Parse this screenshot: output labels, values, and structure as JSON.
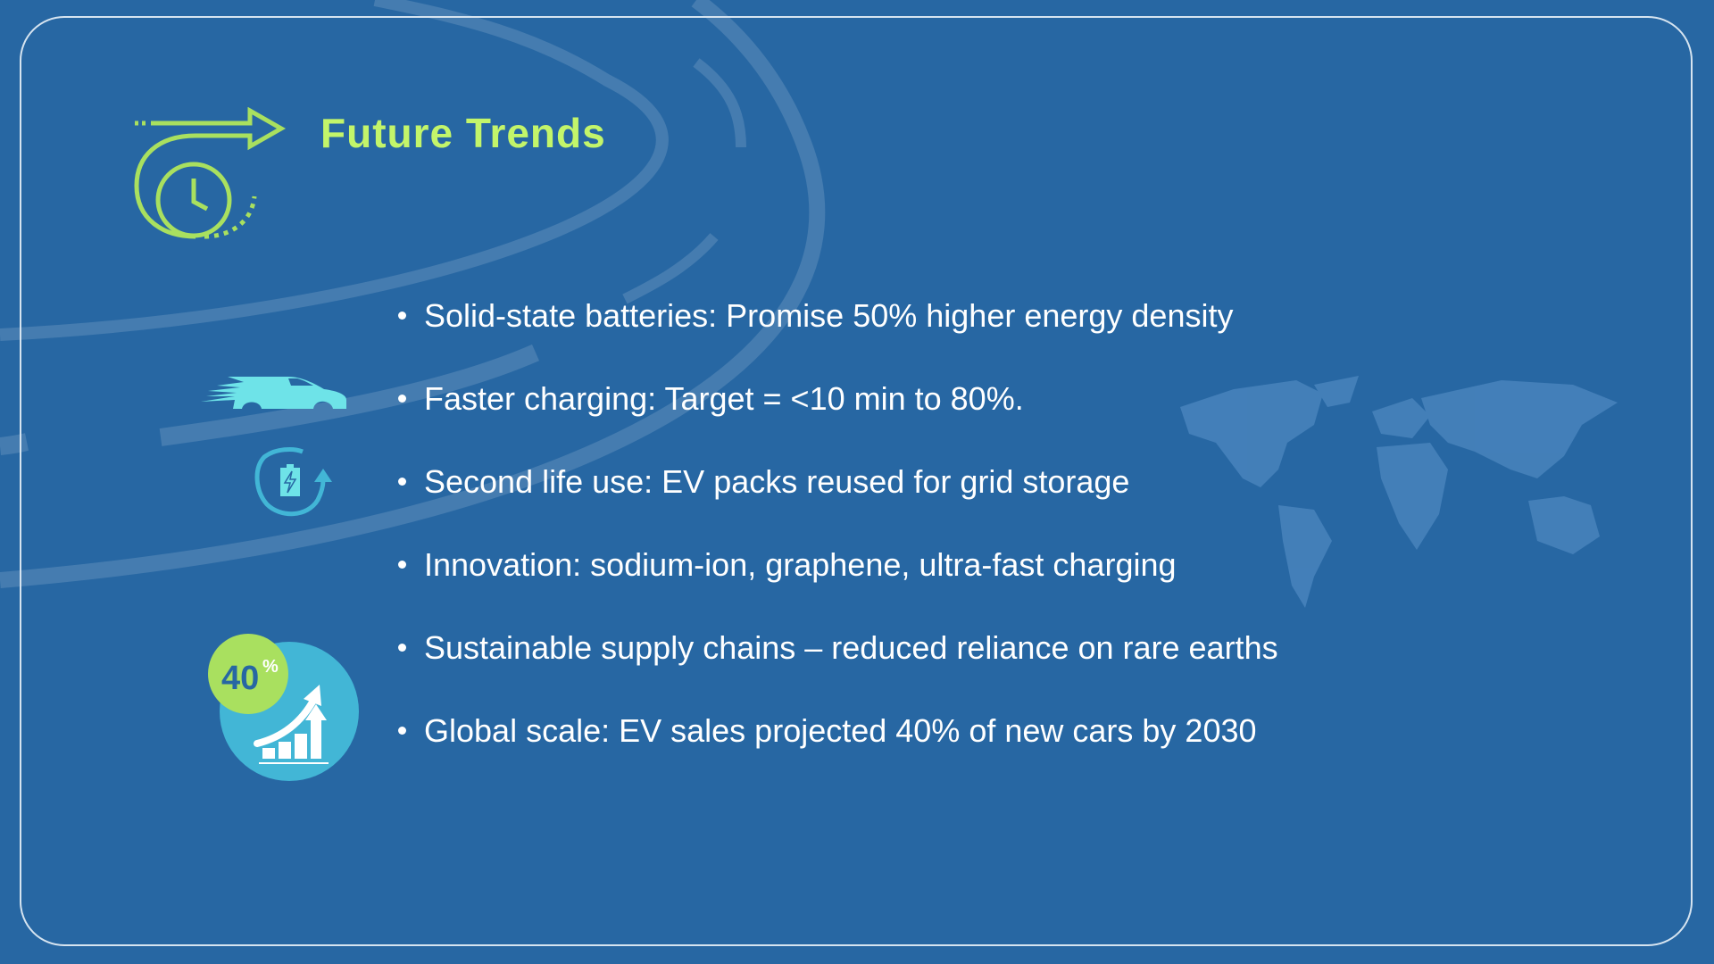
{
  "slide": {
    "title": "Future Trends",
    "bullets": [
      "Solid-state batteries: Promise 50% higher energy density",
      "Faster charging: Target = <10 min to 80%.",
      "Second life use: EV packs reused for grid storage",
      "Innovation: sodium-ion, graphene, ultra-fast charging",
      "Sustainable supply chains – reduced reliance on rare earths",
      "Global scale: EV sales projected 40% of new cars by 2030"
    ],
    "badge": {
      "value": "40",
      "unit": "%"
    },
    "icons": [
      "clock-arrow-icon",
      "car-speed-icon",
      "battery-recycle-icon",
      "growth-chart-icon",
      "world-map-icon"
    ],
    "colors": {
      "background": "#2767a3",
      "title": "#c3f56a",
      "accent_cyan": "#6ee3e8",
      "accent_green": "#a9e05f",
      "circle_blue": "#42b6d6"
    }
  }
}
